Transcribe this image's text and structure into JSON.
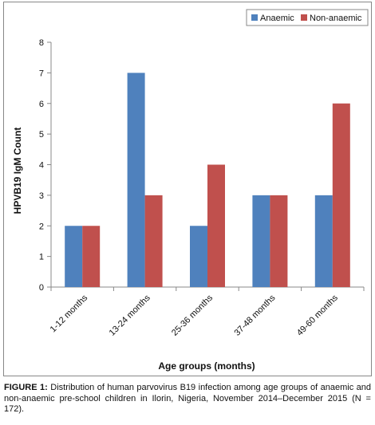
{
  "chart_data": {
    "type": "bar",
    "categories": [
      "1-12 months",
      "13-24 months",
      "25-36 months",
      "37-48 months",
      "49-60 months"
    ],
    "series": [
      {
        "name": "Anaemic",
        "values": [
          2,
          7,
          2,
          3,
          3
        ],
        "color": "#4F81BD"
      },
      {
        "name": "Non-anaemic",
        "values": [
          2,
          3,
          4,
          3,
          6
        ],
        "color": "#C0504D"
      }
    ],
    "xlabel": "Age groups (months)",
    "ylabel": "HPVB19 IgM Count",
    "ylim": [
      0,
      8
    ],
    "yticks": [
      "0",
      "1",
      "2",
      "3",
      "4",
      "5",
      "6",
      "7",
      "8"
    ],
    "grid": false,
    "legend": "top-right"
  },
  "caption": {
    "label": "FIGURE 1:",
    "text": " Distribution of human parvovirus B19 infection among age groups of anaemic and non-anaemic pre-school children in Ilorin, Nigeria, November 2014–December 2015 (N = 172)."
  }
}
